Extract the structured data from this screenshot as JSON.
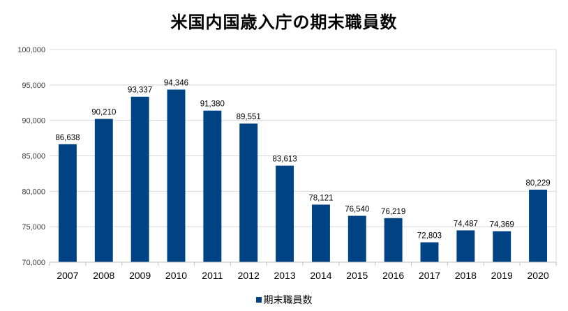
{
  "chart_data": {
    "type": "bar",
    "title": "米国内国歳入庁の期末職員数",
    "categories": [
      "2007",
      "2008",
      "2009",
      "2010",
      "2011",
      "2012",
      "2013",
      "2014",
      "2015",
      "2016",
      "2017",
      "2018",
      "2019",
      "2020"
    ],
    "series": [
      {
        "name": "期末職員数",
        "color": "#004384",
        "values": [
          86638,
          90210,
          93337,
          94346,
          91380,
          89551,
          83613,
          78121,
          76540,
          76219,
          72803,
          74487,
          74369,
          80229
        ],
        "labels": [
          "86,638",
          "90,210",
          "93,337",
          "94,346",
          "91,380",
          "89,551",
          "83,613",
          "78,121",
          "76,540",
          "76,219",
          "72,803",
          "74,487",
          "74,369",
          "80,229"
        ]
      }
    ],
    "ylim": [
      70000,
      100000
    ],
    "yticks": [
      70000,
      75000,
      80000,
      85000,
      90000,
      95000,
      100000
    ],
    "ytick_labels": [
      "70,000",
      "75,000",
      "80,000",
      "85,000",
      "90,000",
      "95,000",
      "100,000"
    ],
    "grid": true,
    "legend_position": "bottom"
  }
}
